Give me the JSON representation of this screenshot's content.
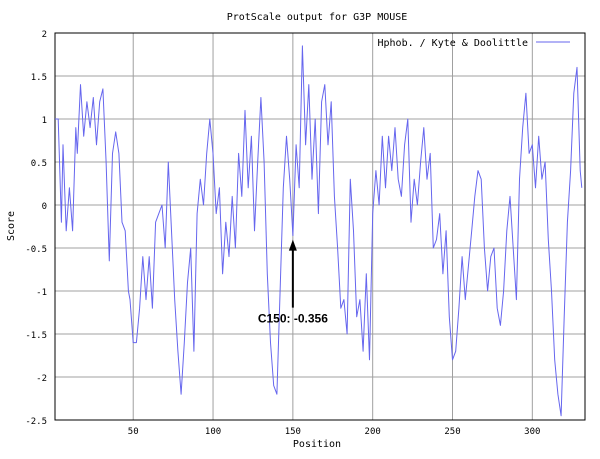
{
  "chart_data": {
    "type": "line",
    "title": "ProtScale output for G3P MOUSE",
    "xlabel": "Position",
    "ylabel": "Score",
    "xlim": [
      1,
      333
    ],
    "ylim": [
      -2.5,
      2
    ],
    "x_ticks": [
      50,
      100,
      150,
      200,
      250,
      300
    ],
    "y_ticks": [
      -2.5,
      -2,
      -1.5,
      -1,
      -0.5,
      0,
      0.5,
      1,
      1.5,
      2
    ],
    "y_tick_labels": [
      "-2.5",
      "-2",
      "-1.5",
      "-1",
      "-0.5",
      "0",
      "0.5",
      "1",
      "1.5",
      "2"
    ],
    "grid": true,
    "legend_position": "top-right",
    "colors": {
      "series": "#6666ee",
      "grid": "#a0a0a0",
      "axes": "#000000"
    },
    "series": [
      {
        "name": "Hphob. / Kyte & Doolittle",
        "points": [
          [
            1,
            1.0
          ],
          [
            3,
            1.0
          ],
          [
            5,
            -0.2
          ],
          [
            6,
            0.7
          ],
          [
            8,
            -0.3
          ],
          [
            10,
            0.2
          ],
          [
            12,
            -0.3
          ],
          [
            14,
            0.9
          ],
          [
            15,
            0.6
          ],
          [
            17,
            1.4
          ],
          [
            19,
            0.8
          ],
          [
            21,
            1.2
          ],
          [
            23,
            0.9
          ],
          [
            25,
            1.25
          ],
          [
            27,
            0.7
          ],
          [
            29,
            1.2
          ],
          [
            31,
            1.35
          ],
          [
            33,
            0.5
          ],
          [
            35,
            -0.65
          ],
          [
            37,
            0.6
          ],
          [
            39,
            0.85
          ],
          [
            41,
            0.6
          ],
          [
            43,
            -0.2
          ],
          [
            45,
            -0.3
          ],
          [
            47,
            -1.0
          ],
          [
            48,
            -1.1
          ],
          [
            50,
            -1.6
          ],
          [
            52,
            -1.6
          ],
          [
            54,
            -1.2
          ],
          [
            56,
            -0.6
          ],
          [
            58,
            -1.1
          ],
          [
            60,
            -0.6
          ],
          [
            62,
            -1.2
          ],
          [
            64,
            -0.2
          ],
          [
            66,
            -0.1
          ],
          [
            68,
            0.0
          ],
          [
            70,
            -0.5
          ],
          [
            72,
            0.5
          ],
          [
            74,
            -0.3
          ],
          [
            76,
            -1.1
          ],
          [
            78,
            -1.7
          ],
          [
            80,
            -2.2
          ],
          [
            82,
            -1.6
          ],
          [
            84,
            -0.9
          ],
          [
            86,
            -0.5
          ],
          [
            88,
            -1.7
          ],
          [
            90,
            -0.1
          ],
          [
            92,
            0.3
          ],
          [
            94,
            0.0
          ],
          [
            96,
            0.6
          ],
          [
            98,
            1.0
          ],
          [
            100,
            0.6
          ],
          [
            102,
            -0.1
          ],
          [
            104,
            0.2
          ],
          [
            106,
            -0.8
          ],
          [
            108,
            -0.2
          ],
          [
            110,
            -0.6
          ],
          [
            112,
            0.1
          ],
          [
            114,
            -0.5
          ],
          [
            116,
            0.6
          ],
          [
            118,
            0.1
          ],
          [
            120,
            1.1
          ],
          [
            122,
            0.2
          ],
          [
            124,
            0.8
          ],
          [
            126,
            -0.3
          ],
          [
            128,
            0.5
          ],
          [
            130,
            1.25
          ],
          [
            132,
            0.5
          ],
          [
            134,
            -0.8
          ],
          [
            136,
            -1.6
          ],
          [
            138,
            -2.1
          ],
          [
            140,
            -2.2
          ],
          [
            142,
            -1.0
          ],
          [
            144,
            0.2
          ],
          [
            146,
            0.8
          ],
          [
            148,
            0.3
          ],
          [
            150,
            -0.356
          ],
          [
            152,
            0.7
          ],
          [
            154,
            0.2
          ],
          [
            156,
            1.85
          ],
          [
            158,
            0.7
          ],
          [
            160,
            1.4
          ],
          [
            162,
            0.3
          ],
          [
            164,
            1.0
          ],
          [
            166,
            -0.1
          ],
          [
            168,
            1.2
          ],
          [
            170,
            1.4
          ],
          [
            172,
            0.7
          ],
          [
            174,
            1.2
          ],
          [
            176,
            0.1
          ],
          [
            178,
            -0.5
          ],
          [
            180,
            -1.2
          ],
          [
            182,
            -1.1
          ],
          [
            184,
            -1.5
          ],
          [
            186,
            0.3
          ],
          [
            188,
            -0.3
          ],
          [
            190,
            -1.3
          ],
          [
            192,
            -1.1
          ],
          [
            194,
            -1.7
          ],
          [
            196,
            -0.8
          ],
          [
            198,
            -1.8
          ],
          [
            200,
            -0.1
          ],
          [
            202,
            0.4
          ],
          [
            204,
            0.0
          ],
          [
            206,
            0.8
          ],
          [
            208,
            0.2
          ],
          [
            210,
            0.8
          ],
          [
            212,
            0.4
          ],
          [
            214,
            0.9
          ],
          [
            216,
            0.3
          ],
          [
            218,
            0.1
          ],
          [
            220,
            0.7
          ],
          [
            222,
            1.0
          ],
          [
            224,
            -0.2
          ],
          [
            226,
            0.3
          ],
          [
            228,
            0.0
          ],
          [
            230,
            0.5
          ],
          [
            232,
            0.9
          ],
          [
            234,
            0.3
          ],
          [
            236,
            0.6
          ],
          [
            238,
            -0.5
          ],
          [
            240,
            -0.4
          ],
          [
            242,
            -0.1
          ],
          [
            244,
            -0.8
          ],
          [
            246,
            -0.3
          ],
          [
            248,
            -1.3
          ],
          [
            250,
            -1.8
          ],
          [
            252,
            -1.7
          ],
          [
            254,
            -1.2
          ],
          [
            256,
            -0.6
          ],
          [
            258,
            -1.1
          ],
          [
            260,
            -0.7
          ],
          [
            262,
            -0.3
          ],
          [
            264,
            0.1
          ],
          [
            266,
            0.4
          ],
          [
            268,
            0.3
          ],
          [
            270,
            -0.5
          ],
          [
            272,
            -1.0
          ],
          [
            274,
            -0.6
          ],
          [
            276,
            -0.5
          ],
          [
            278,
            -1.2
          ],
          [
            280,
            -1.4
          ],
          [
            282,
            -1.0
          ],
          [
            284,
            -0.3
          ],
          [
            286,
            0.1
          ],
          [
            288,
            -0.5
          ],
          [
            290,
            -1.1
          ],
          [
            292,
            0.3
          ],
          [
            294,
            0.9
          ],
          [
            296,
            1.3
          ],
          [
            298,
            0.6
          ],
          [
            300,
            0.7
          ],
          [
            302,
            0.2
          ],
          [
            304,
            0.8
          ],
          [
            306,
            0.3
          ],
          [
            308,
            0.5
          ],
          [
            310,
            -0.4
          ],
          [
            312,
            -1.0
          ],
          [
            314,
            -1.8
          ],
          [
            316,
            -2.2
          ],
          [
            318,
            -2.45
          ],
          [
            320,
            -1.3
          ],
          [
            322,
            -0.2
          ],
          [
            324,
            0.4
          ],
          [
            326,
            1.3
          ],
          [
            328,
            1.6
          ],
          [
            330,
            0.4
          ],
          [
            331,
            0.2
          ]
        ]
      }
    ],
    "annotations": [
      {
        "text": "C150: -0.356",
        "x": 150,
        "y": -0.356
      }
    ]
  }
}
